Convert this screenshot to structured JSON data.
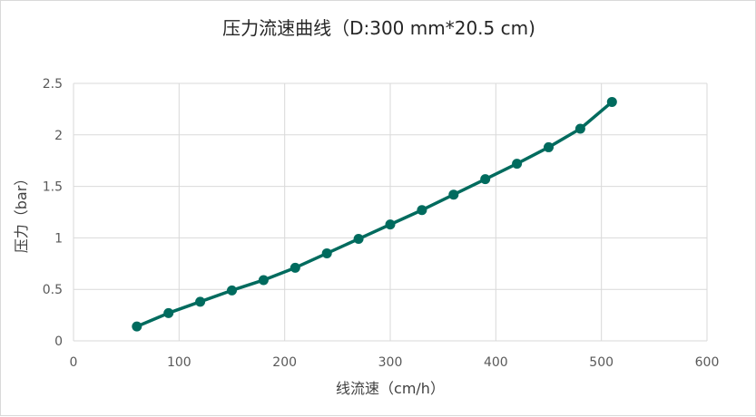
{
  "chart_data": {
    "type": "line",
    "title": "压力流速曲线（D:300 mm*20.5 cm)",
    "xlabel": "线流速（cm/h）",
    "ylabel": "压力（bar）",
    "xlim": [
      0,
      600
    ],
    "ylim": [
      0,
      2.5
    ],
    "xticks": [
      0,
      100,
      200,
      300,
      400,
      500,
      600
    ],
    "yticks": [
      0,
      0.5,
      1,
      1.5,
      2,
      2.5
    ],
    "xtick_labels": [
      "0",
      "100",
      "200",
      "300",
      "400",
      "500",
      "600"
    ],
    "ytick_labels": [
      "0",
      "0.5",
      "1",
      "1.5",
      "2",
      "2.5"
    ],
    "grid": true,
    "legend": "none",
    "series": [
      {
        "color": "#006B5E",
        "x": [
          60,
          90,
          120,
          150,
          180,
          210,
          240,
          270,
          300,
          330,
          360,
          390,
          420,
          450,
          480,
          510
        ],
        "y": [
          0.14,
          0.27,
          0.38,
          0.49,
          0.59,
          0.71,
          0.85,
          0.99,
          1.13,
          1.27,
          1.42,
          1.57,
          1.72,
          1.88,
          2.06,
          2.32
        ]
      }
    ]
  }
}
